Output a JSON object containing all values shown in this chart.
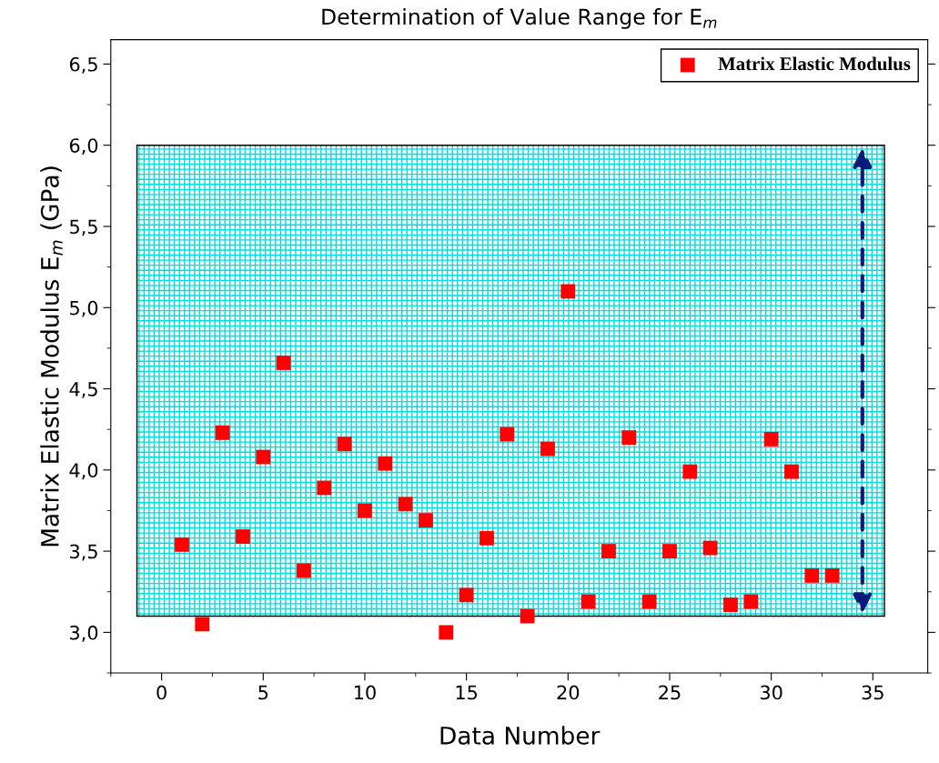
{
  "chart_data": {
    "type": "scatter",
    "title": "Determination of Value Range for E$_{m}$",
    "xlabel": "Data Number",
    "ylabel": "Matrix Elastic Modulus E$_{m}$ (GPa)",
    "x": [
      1,
      2,
      3,
      4,
      5,
      6,
      7,
      8,
      9,
      10,
      11,
      12,
      13,
      14,
      15,
      16,
      17,
      18,
      19,
      20,
      21,
      22,
      23,
      24,
      25,
      26,
      27,
      28,
      29,
      30,
      31,
      32,
      33
    ],
    "series": [
      {
        "name": "Matrix Elastic Modulus",
        "color": "#ff0000",
        "values": [
          3.54,
          3.05,
          4.23,
          3.59,
          4.08,
          4.66,
          3.38,
          3.89,
          4.16,
          3.75,
          4.04,
          3.79,
          3.69,
          3.0,
          3.23,
          3.58,
          4.22,
          3.1,
          4.13,
          5.1,
          3.19,
          3.5,
          4.2,
          3.19,
          3.5,
          3.99,
          3.52,
          3.17,
          3.19,
          4.19,
          3.99,
          3.35,
          3.35
        ]
      }
    ],
    "xlim": [
      -2.5,
      37.7
    ],
    "ylim": [
      2.75,
      6.65
    ],
    "xticks": [
      0,
      5,
      10,
      15,
      20,
      25,
      30,
      35
    ],
    "yticks": [
      {
        "value": 3.0,
        "label": "3,0"
      },
      {
        "value": 3.5,
        "label": "3,5"
      },
      {
        "value": 4.0,
        "label": "4,0"
      },
      {
        "value": 4.5,
        "label": "4,5"
      },
      {
        "value": 5.0,
        "label": "5,0"
      },
      {
        "value": 5.5,
        "label": "5,5"
      },
      {
        "value": 6.0,
        "label": "6,0"
      },
      {
        "value": 6.5,
        "label": "6,5"
      }
    ],
    "bands": [
      {
        "axis": "y",
        "from": 3.1,
        "to": 6.0,
        "color": "#00dddd"
      }
    ],
    "marker": "square",
    "legend": "top right",
    "grid": false
  }
}
